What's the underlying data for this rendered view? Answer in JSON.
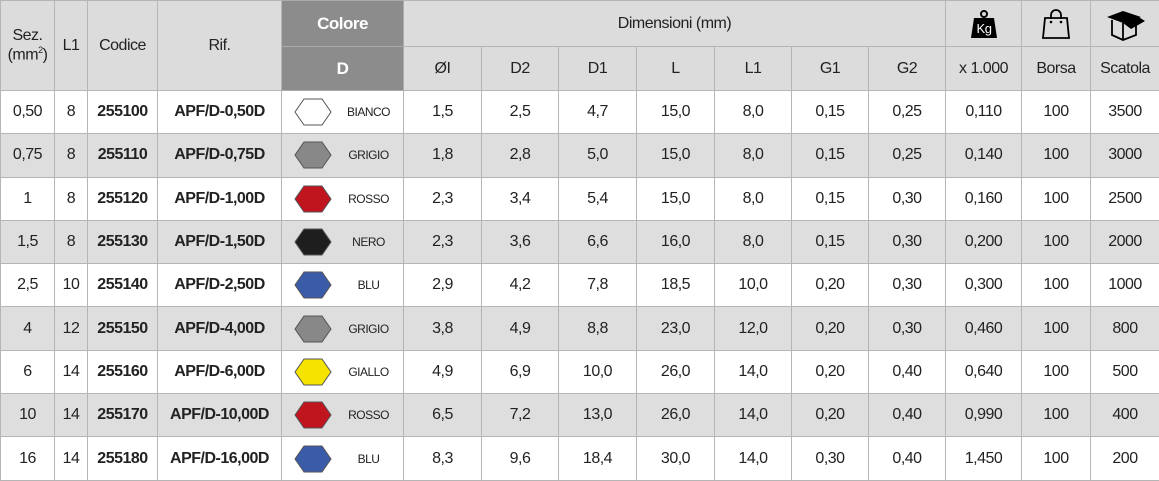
{
  "header": {
    "sez": "Sez.",
    "sez_unit": "(mm",
    "sez_sup": "2",
    "sez_close": ")",
    "l1": "L1",
    "codice": "Codice",
    "rif": "Rif.",
    "colore": "Colore",
    "colore_sub": "D",
    "dimensioni": "Dimensioni (mm)",
    "dims": [
      "ØI",
      "D2",
      "D1",
      "L",
      "L1",
      "G1",
      "G2"
    ],
    "weight_icon_text": "Kg",
    "weight_label": "x 1.000",
    "borsa": "Borsa",
    "scatola": "Scatola",
    "icons": [
      "kg-weight-icon",
      "bag-icon",
      "box-icon"
    ]
  },
  "rows": [
    {
      "sez": "0,50",
      "l1": "8",
      "codice": "255100",
      "rif": "APF/D-0,50D",
      "color_name": "BIANCO",
      "color": "#ffffff",
      "dims": [
        "1,5",
        "2,5",
        "4,7",
        "15,0",
        "8,0",
        "0,15",
        "0,25"
      ],
      "peso": "0,110",
      "borsa": "100",
      "scatola": "3500"
    },
    {
      "sez": "0,75",
      "l1": "8",
      "codice": "255110",
      "rif": "APF/D-0,75D",
      "color_name": "GRIGIO",
      "color": "#888888",
      "dims": [
        "1,8",
        "2,8",
        "5,0",
        "15,0",
        "8,0",
        "0,15",
        "0,25"
      ],
      "peso": "0,140",
      "borsa": "100",
      "scatola": "3000"
    },
    {
      "sez": "1",
      "l1": "8",
      "codice": "255120",
      "rif": "APF/D-1,00D",
      "color_name": "ROSSO",
      "color": "#c0141e",
      "dims": [
        "2,3",
        "3,4",
        "5,4",
        "15,0",
        "8,0",
        "0,15",
        "0,30"
      ],
      "peso": "0,160",
      "borsa": "100",
      "scatola": "2500"
    },
    {
      "sez": "1,5",
      "l1": "8",
      "codice": "255130",
      "rif": "APF/D-1,50D",
      "color_name": "NERO",
      "color": "#1e1e1e",
      "dims": [
        "2,3",
        "3,6",
        "6,6",
        "16,0",
        "8,0",
        "0,15",
        "0,30"
      ],
      "peso": "0,200",
      "borsa": "100",
      "scatola": "2000"
    },
    {
      "sez": "2,5",
      "l1": "10",
      "codice": "255140",
      "rif": "APF/D-2,50D",
      "color_name": "BLU",
      "color": "#3a5ba8",
      "dims": [
        "2,9",
        "4,2",
        "7,8",
        "18,5",
        "10,0",
        "0,20",
        "0,30"
      ],
      "peso": "0,300",
      "borsa": "100",
      "scatola": "1000"
    },
    {
      "sez": "4",
      "l1": "12",
      "codice": "255150",
      "rif": "APF/D-4,00D",
      "color_name": "GRIGIO",
      "color": "#888888",
      "dims": [
        "3,8",
        "4,9",
        "8,8",
        "23,0",
        "12,0",
        "0,20",
        "0,30"
      ],
      "peso": "0,460",
      "borsa": "100",
      "scatola": "800"
    },
    {
      "sez": "6",
      "l1": "14",
      "codice": "255160",
      "rif": "APF/D-6,00D",
      "color_name": "GIALLO",
      "color": "#f5e400",
      "dims": [
        "4,9",
        "6,9",
        "10,0",
        "26,0",
        "14,0",
        "0,20",
        "0,40"
      ],
      "peso": "0,640",
      "borsa": "100",
      "scatola": "500"
    },
    {
      "sez": "10",
      "l1": "14",
      "codice": "255170",
      "rif": "APF/D-10,00D",
      "color_name": "ROSSO",
      "color": "#c0141e",
      "dims": [
        "6,5",
        "7,2",
        "13,0",
        "26,0",
        "14,0",
        "0,20",
        "0,40"
      ],
      "peso": "0,990",
      "borsa": "100",
      "scatola": "400"
    },
    {
      "sez": "16",
      "l1": "14",
      "codice": "255180",
      "rif": "APF/D-16,00D",
      "color_name": "BLU",
      "color": "#3a5ba8",
      "dims": [
        "8,3",
        "9,6",
        "18,4",
        "30,0",
        "14,0",
        "0,30",
        "0,40"
      ],
      "peso": "1,450",
      "borsa": "100",
      "scatola": "200"
    }
  ]
}
